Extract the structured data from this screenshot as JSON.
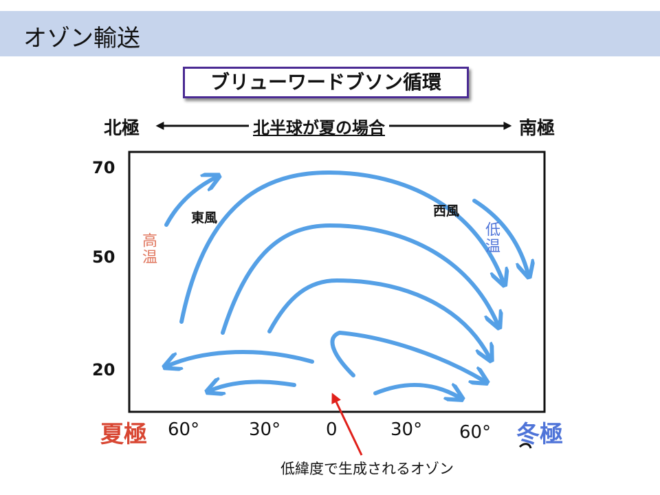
{
  "slide": {
    "title": "オゾン輸送",
    "subtitle": "ブリューワードブソン循環"
  },
  "axis": {
    "north_pole": "北極",
    "south_pole": "南極",
    "hemisphere_note": "北半球が夏の場合",
    "y_ticks": [
      "70",
      "50",
      "20"
    ],
    "x_ticks": [
      "60°",
      "30°",
      "0",
      "30°",
      "60°"
    ],
    "summer_pole": "夏極",
    "winter_pole": "冬極"
  },
  "annotations": {
    "easterly": "東風",
    "westerly": "西風",
    "high_temp": "高温",
    "low_temp": "低温",
    "ozone_caption": "低緯度で生成されるオゾン"
  },
  "colors": {
    "arrow": "#55a0e6",
    "title_bar": "#c6d4ec",
    "subtitle_border": "#4a2a93",
    "summer": "#d84632",
    "winter": "#4f74d8",
    "pointer": "#e0201a"
  }
}
